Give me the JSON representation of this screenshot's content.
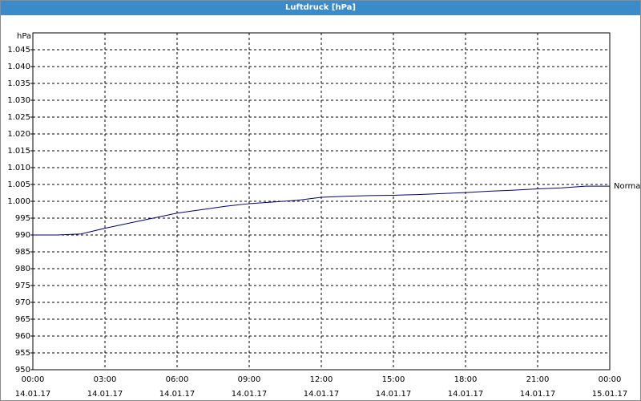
{
  "chart_data": {
    "type": "line",
    "title": "Luftdruck [hPa]",
    "y_label": "hPa",
    "x": [
      0,
      1,
      2,
      3,
      4,
      5,
      6,
      7,
      8,
      9,
      10,
      11,
      12,
      13,
      14,
      15,
      16,
      17,
      18,
      19,
      20,
      21,
      22,
      23,
      24
    ],
    "series": [
      {
        "name": "Normal",
        "color": "#000080",
        "values": [
          990,
          990,
          990.3,
          992,
          993.5,
          995,
          996.5,
          997.5,
          998.5,
          999.3,
          999.8,
          1000.3,
          1001.2,
          1001.5,
          1001.7,
          1001.8,
          1002,
          1002.3,
          1002.6,
          1003,
          1003.3,
          1003.7,
          1004,
          1004.5,
          1004.5
        ]
      }
    ],
    "xlim": [
      0,
      24
    ],
    "xticks": [
      {
        "value": 0,
        "label": "00:00\n14.01.17"
      },
      {
        "value": 3,
        "label": "03:00\n14.01.17"
      },
      {
        "value": 6,
        "label": "06:00\n14.01.17"
      },
      {
        "value": 9,
        "label": "09:00\n14.01.17"
      },
      {
        "value": 12,
        "label": "12:00\n14.01.17"
      },
      {
        "value": 15,
        "label": "15:00\n14.01.17"
      },
      {
        "value": 18,
        "label": "18:00\n14.01.17"
      },
      {
        "value": 21,
        "label": "21:00\n14.01.17"
      },
      {
        "value": 24,
        "label": "00:00\n15.01.17"
      }
    ],
    "ylim": [
      950,
      1050
    ],
    "yticks": [
      950,
      955,
      960,
      965,
      970,
      975,
      980,
      985,
      990,
      995,
      {
        "value": 1000,
        "label": "1.000"
      },
      {
        "value": 1005,
        "label": "1.005"
      },
      {
        "value": 1010,
        "label": "1.010"
      },
      {
        "value": 1015,
        "label": "1.015"
      },
      {
        "value": 1020,
        "label": "1.020"
      },
      {
        "value": 1025,
        "label": "1.025"
      },
      {
        "value": 1030,
        "label": "1.030"
      },
      {
        "value": 1035,
        "label": "1.035"
      },
      {
        "value": 1040,
        "label": "1.040"
      },
      {
        "value": 1045,
        "label": "1.045"
      }
    ],
    "grid": true
  }
}
